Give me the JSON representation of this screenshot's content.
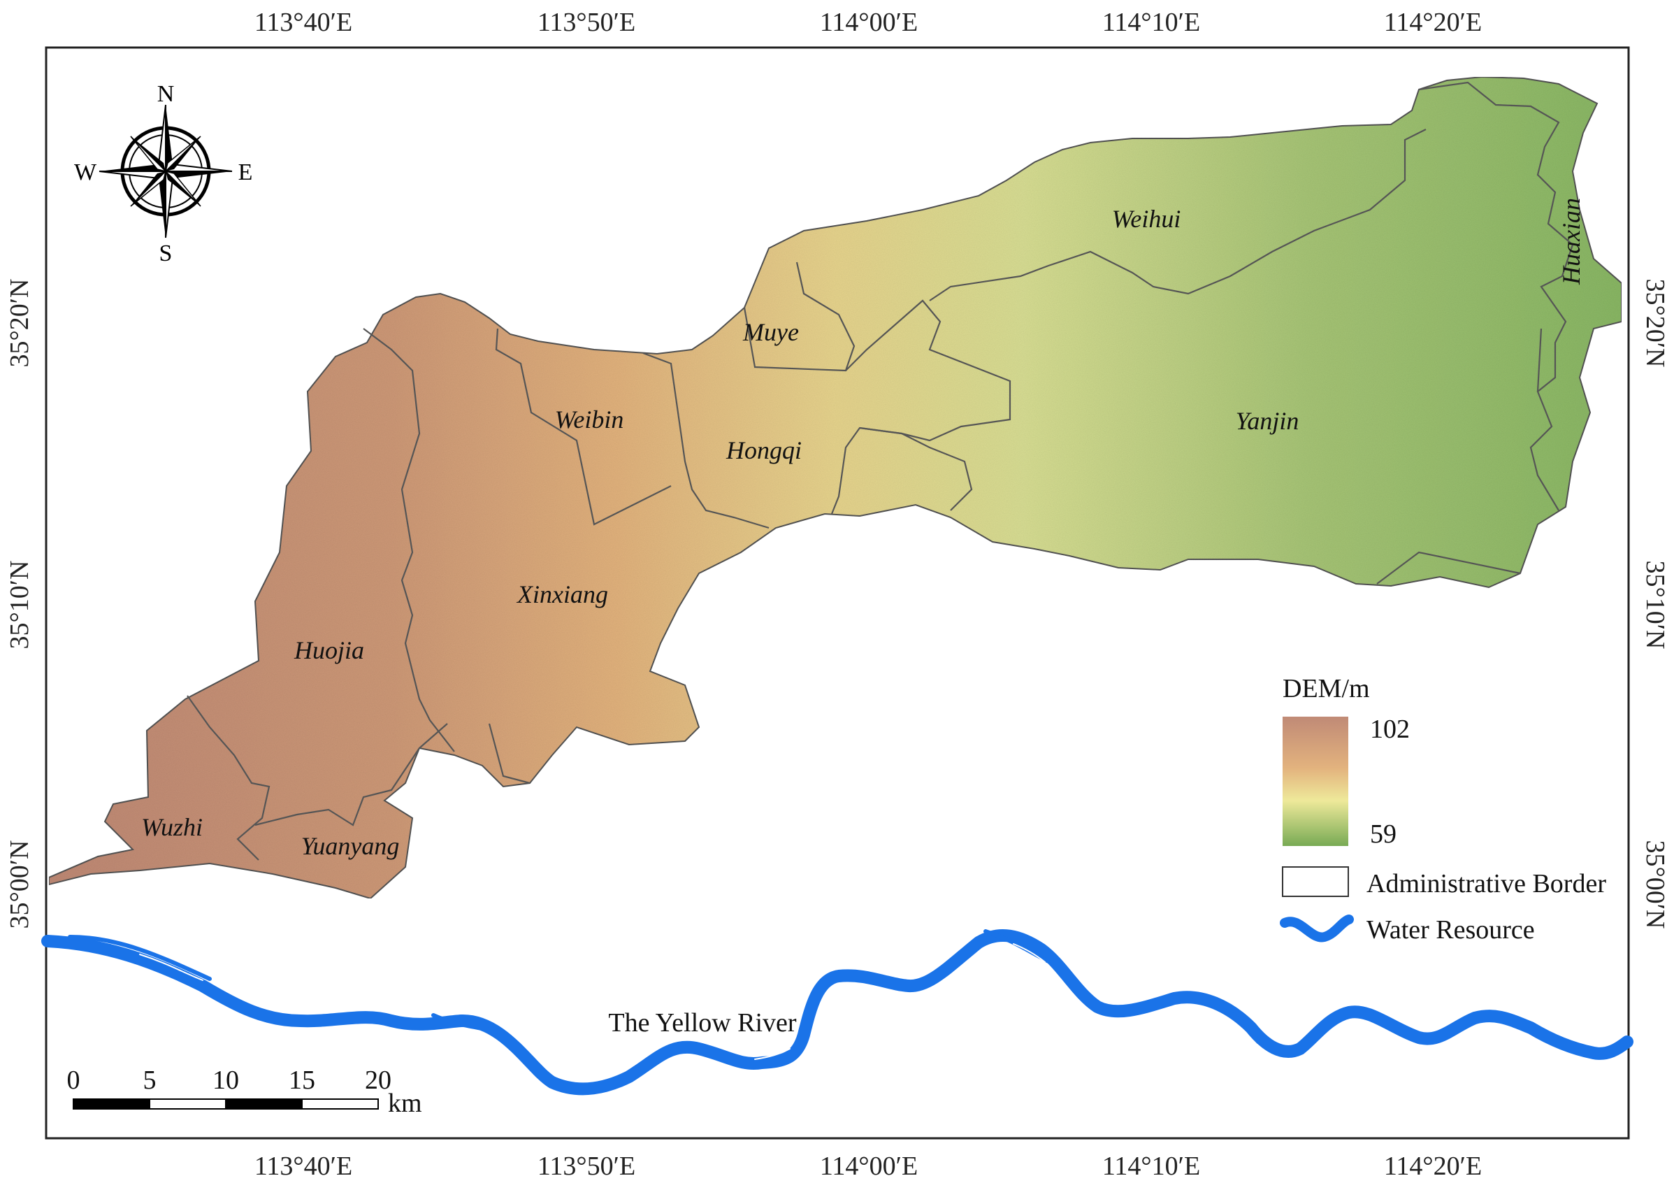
{
  "map": {
    "axes": {
      "longitude_labels": [
        "113°40′E",
        "113°50′E",
        "114°00′E",
        "114°10′E",
        "114°20′E"
      ],
      "latitude_labels": [
        "35°00′N",
        "35°10′N",
        "35°20′N"
      ]
    },
    "compass": {
      "n": "N",
      "s": "S",
      "e": "E",
      "w": "W"
    },
    "districts": [
      "Weihui",
      "Huaxian",
      "Muye",
      "Weibin",
      "Hongqi",
      "Yanjin",
      "Xinxiang",
      "Huojia",
      "Wuzhi",
      "Yuanyang"
    ],
    "river_label": "The Yellow River",
    "legend": {
      "title": "DEM/m",
      "max": "102",
      "min": "59",
      "border_label": "Administrative Border",
      "water_label": "Water Resource",
      "colors": {
        "high": "#c08a76",
        "mid_high": "#e3b37e",
        "mid": "#eee99a",
        "low": "#78aa54",
        "water": "#1a73e8"
      }
    },
    "scale_bar": {
      "ticks": [
        "0",
        "5",
        "10",
        "15",
        "20"
      ],
      "unit": "km"
    }
  }
}
